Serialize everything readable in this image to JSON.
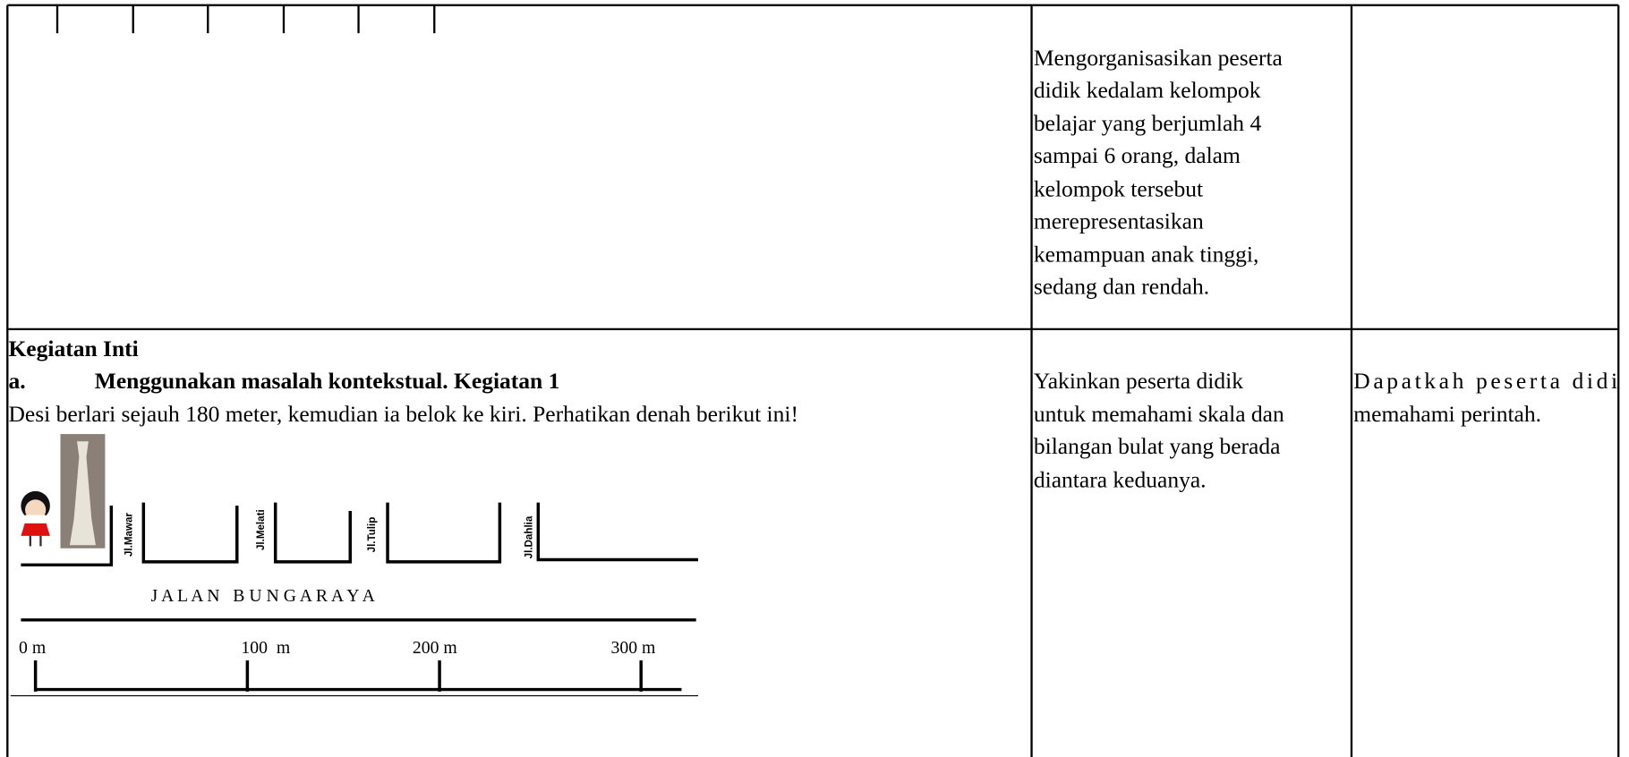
{
  "row1": {
    "col2_lines": [
      "Mengorganisasikan peserta",
      "didik kedalam kelompok",
      "belajar yang berjumlah 4",
      "sampai 6 orang, dalam",
      "kelompok tersebut",
      "merepresentasikan",
      "kemampuan anak tinggi,",
      "sedang dan rendah."
    ]
  },
  "row2": {
    "heading": "Kegiatan Inti",
    "item_marker": "a.",
    "item_title": "Menggunakan masalah kontekstual. Kegiatan 1",
    "task": "Desi berlari sejauh 180 meter, kemudian ia belok ke kiri. Perhatikan denah berikut ini!",
    "map": {
      "street_labels": [
        "Jl.Mawar",
        "Jl.Melati",
        "Jl.Tulip",
        "Jl.Dahlia"
      ],
      "road_name": "J A L A N   B U N G A R A Y A",
      "scale_labels": [
        "0 m",
        "100  m",
        "200 m",
        "300 m"
      ]
    },
    "col2_lines": [
      "Yakinkan peserta didik",
      "untuk memahami skala dan",
      "bilangan bulat yang berada",
      "diantara keduanya."
    ],
    "col3_lines": [
      "Dapatkah peserta didi",
      "memahami perintah."
    ]
  }
}
